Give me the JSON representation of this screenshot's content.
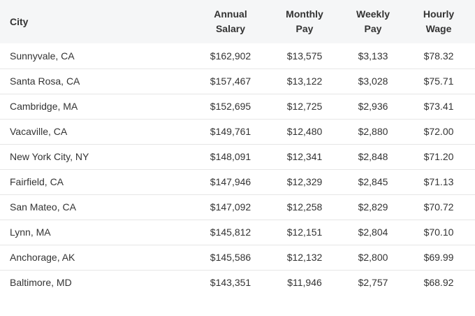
{
  "table": {
    "headers": {
      "city": "City",
      "annual": [
        "Annual",
        "Salary"
      ],
      "monthly": [
        "Monthly",
        "Pay"
      ],
      "weekly": [
        "Weekly",
        "Pay"
      ],
      "hourly": [
        "Hourly",
        "Wage"
      ]
    },
    "rows": [
      {
        "city": "Sunnyvale, CA",
        "annual": "$162,902",
        "monthly": "$13,575",
        "weekly": "$3,133",
        "hourly": "$78.32"
      },
      {
        "city": "Santa Rosa, CA",
        "annual": "$157,467",
        "monthly": "$13,122",
        "weekly": "$3,028",
        "hourly": "$75.71"
      },
      {
        "city": "Cambridge, MA",
        "annual": "$152,695",
        "monthly": "$12,725",
        "weekly": "$2,936",
        "hourly": "$73.41"
      },
      {
        "city": "Vacaville, CA",
        "annual": "$149,761",
        "monthly": "$12,480",
        "weekly": "$2,880",
        "hourly": "$72.00"
      },
      {
        "city": "New York City, NY",
        "annual": "$148,091",
        "monthly": "$12,341",
        "weekly": "$2,848",
        "hourly": "$71.20"
      },
      {
        "city": "Fairfield, CA",
        "annual": "$147,946",
        "monthly": "$12,329",
        "weekly": "$2,845",
        "hourly": "$71.13"
      },
      {
        "city": "San Mateo, CA",
        "annual": "$147,092",
        "monthly": "$12,258",
        "weekly": "$2,829",
        "hourly": "$70.72"
      },
      {
        "city": "Lynn, MA",
        "annual": "$145,812",
        "monthly": "$12,151",
        "weekly": "$2,804",
        "hourly": "$70.10"
      },
      {
        "city": "Anchorage, AK",
        "annual": "$145,586",
        "monthly": "$12,132",
        "weekly": "$2,800",
        "hourly": "$69.99"
      },
      {
        "city": "Baltimore, MD",
        "annual": "$143,351",
        "monthly": "$11,946",
        "weekly": "$2,757",
        "hourly": "$68.92"
      }
    ]
  }
}
